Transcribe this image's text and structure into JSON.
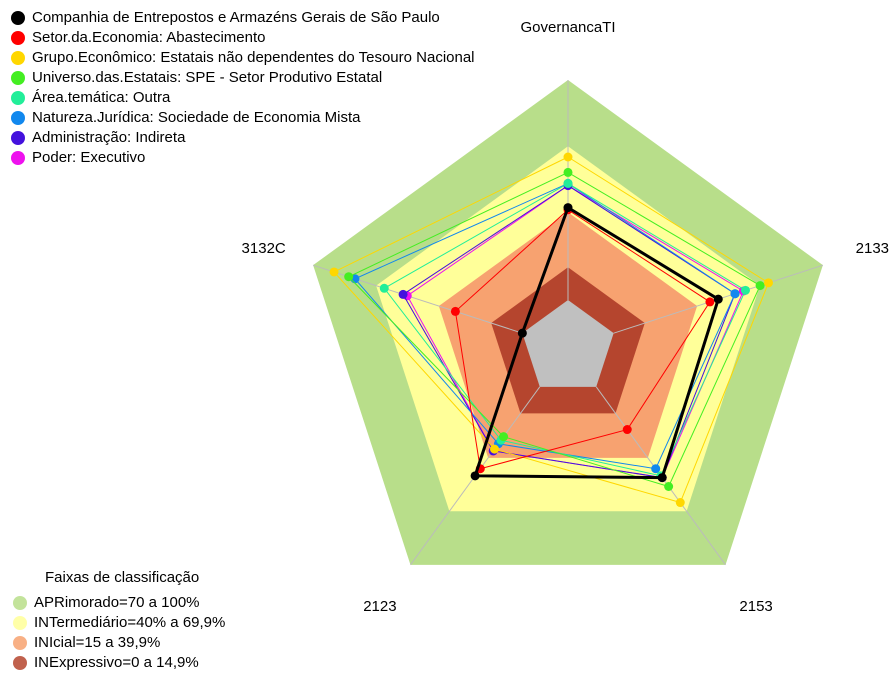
{
  "chart_data": {
    "type": "radar",
    "categories": [
      "GovernancaTI",
      "2133",
      "2153",
      "2123",
      "3132C"
    ],
    "rlim": [
      0,
      100
    ],
    "series": [
      {
        "name": "Companhia de Entrepostos e Armazéns Gerais de São Paulo",
        "color": "#000000",
        "values": [
          42,
          50,
          51,
          50,
          0
        ]
      },
      {
        "name": "Setor.da.Economia: Abastecimento",
        "color": "#ff0000",
        "values": [
          41,
          46,
          24,
          46,
          32
        ]
      },
      {
        "name": "Grupo.Econômico: Estatais não dependentes do Tesouro Nacional",
        "color": "#ffd700",
        "values": [
          65,
          74,
          65,
          35,
          90
        ]
      },
      {
        "name": "Universo.das.Estatais: SPE - Setor Produtivo Estatal",
        "color": "#44ee22",
        "values": [
          58,
          70,
          56,
          28,
          83
        ]
      },
      {
        "name": "Área.temática: Outra",
        "color": "#22ee99",
        "values": [
          53,
          63,
          50,
          30,
          66
        ]
      },
      {
        "name": "Natureza.Jurídica: Sociedade de Economia Mista",
        "color": "#1188ee",
        "values": [
          53,
          58,
          46,
          32,
          80
        ]
      },
      {
        "name": "Administração: Indireta",
        "color": "#4411dd",
        "values": [
          52,
          58,
          51,
          36,
          57
        ]
      },
      {
        "name": "Poder: Executivo",
        "color": "#ee11ee",
        "values": [
          52,
          62,
          51,
          36,
          55
        ]
      }
    ],
    "bands_title": "Faixas de classificação",
    "bands": [
      {
        "label": "APRimorado=70 a 100%",
        "min": 70,
        "max": 100,
        "color": "#b8de8a"
      },
      {
        "label": "INTermediário=40% a 69,9%",
        "min": 40,
        "max": 69.9,
        "color": "#ffff99"
      },
      {
        "label": "INIcial=15 a 39,9%",
        "min": 15,
        "max": 39.9,
        "color": "#f7a270"
      },
      {
        "label": "INExpressivo=0 a 14,9%",
        "min": 0,
        "max": 14.9,
        "color": "#b5452e"
      }
    ]
  }
}
